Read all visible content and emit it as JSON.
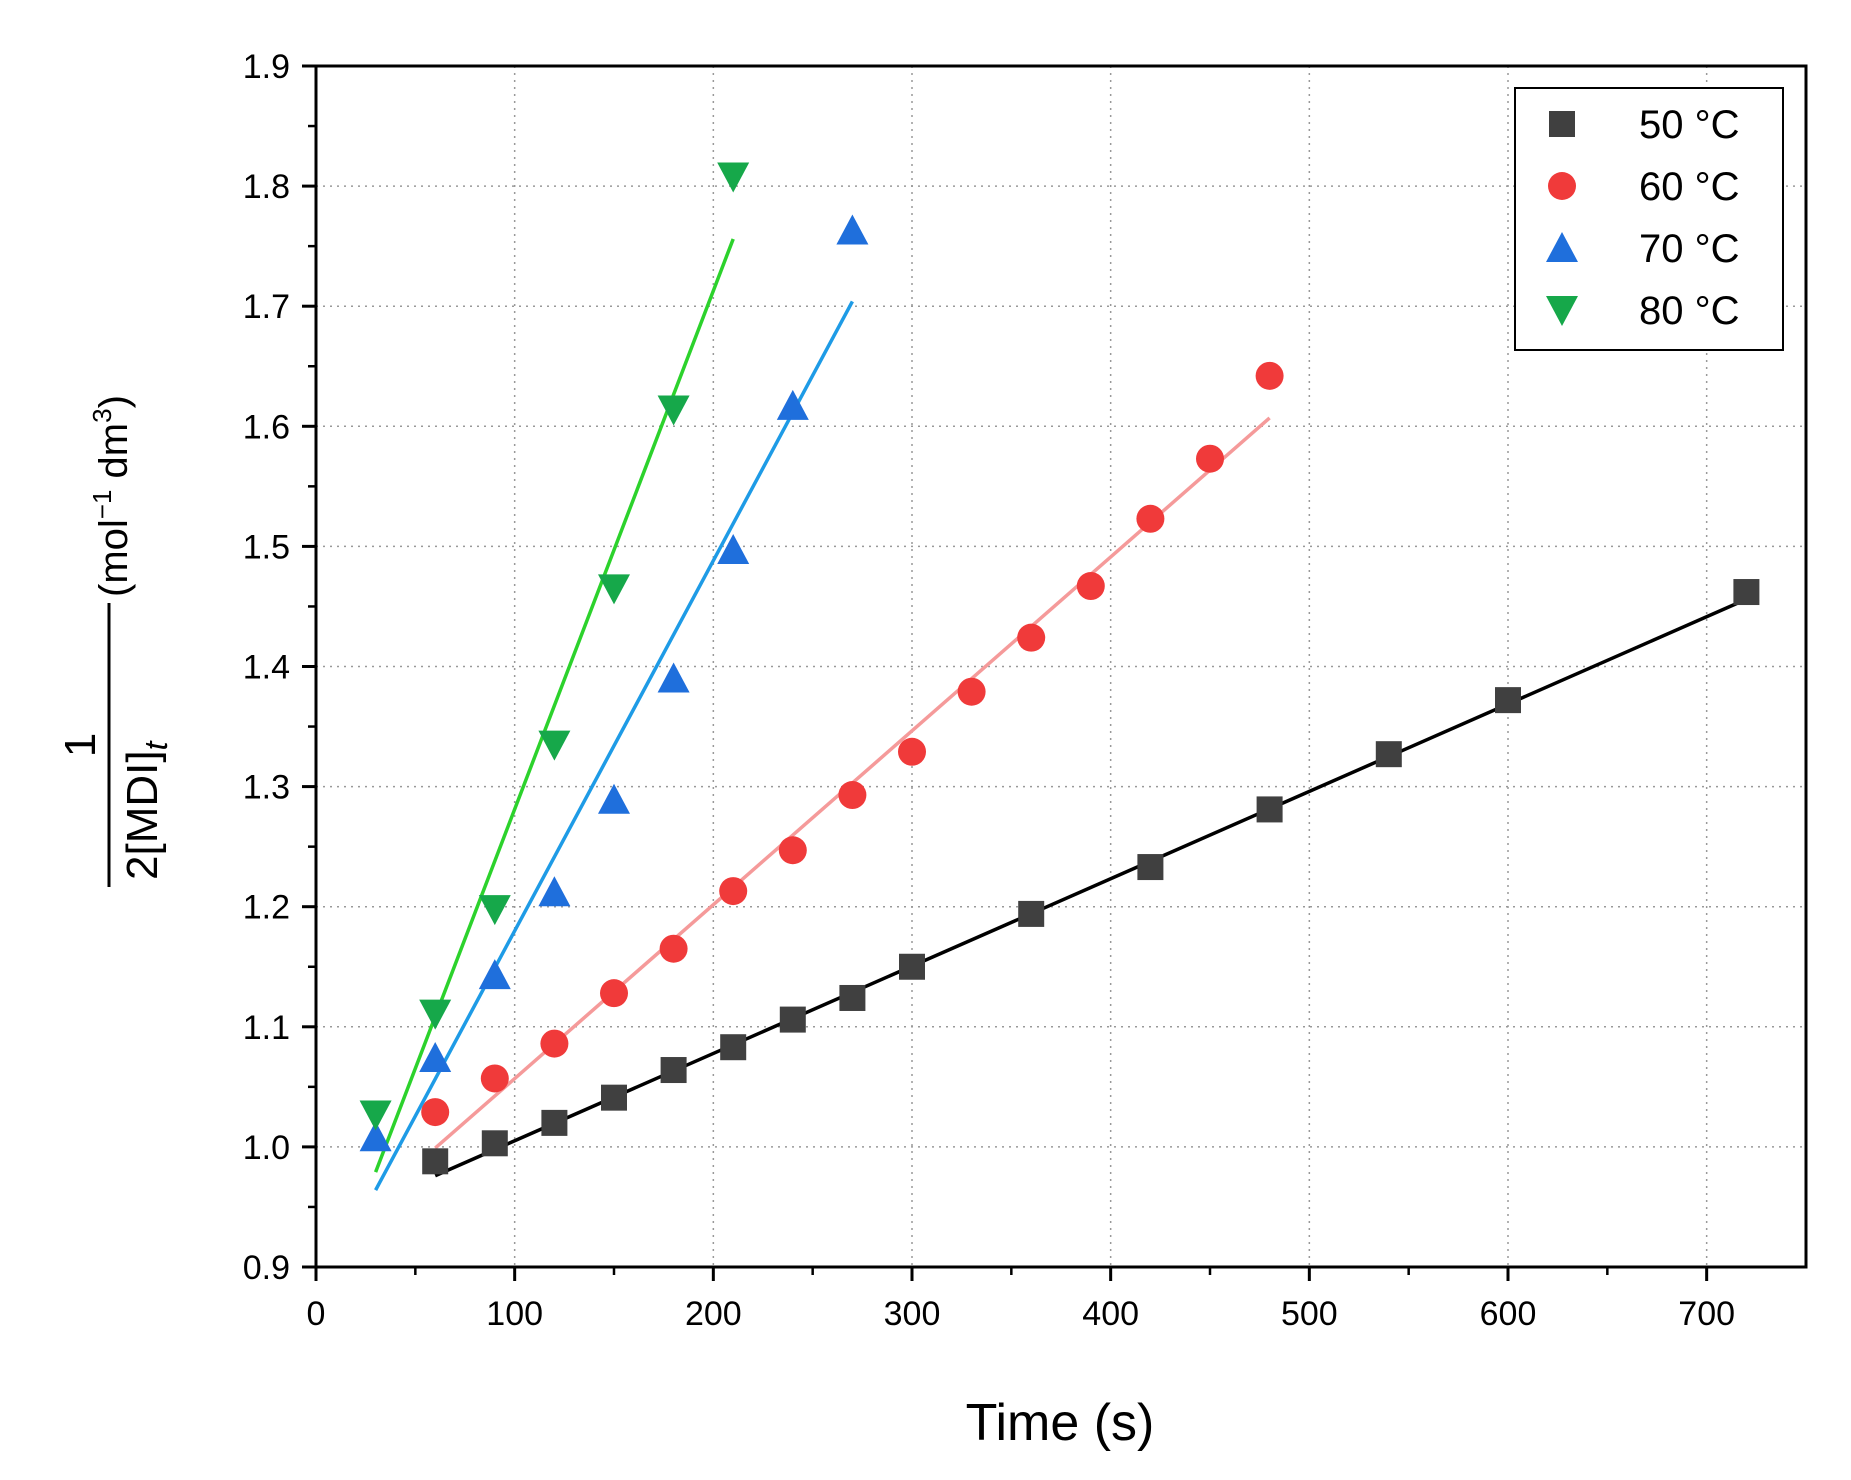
{
  "chart_data": {
    "type": "scatter",
    "title": "",
    "xlabel": "Time (s)",
    "ylabel": {
      "numerator": "1",
      "denominator": "2[MDI]",
      "subscript": "t",
      "unit_prefix": "(mol",
      "unit_exp1": "−1",
      "unit_mid": " dm",
      "unit_exp2": "3",
      "unit_suffix": ")"
    },
    "xlim": [
      0,
      750
    ],
    "ylim": [
      0.9,
      1.9
    ],
    "xticks": [
      0,
      100,
      200,
      300,
      400,
      500,
      600,
      700
    ],
    "xtick_labels": [
      "0",
      "100",
      "200",
      "300",
      "400",
      "500",
      "600",
      "700"
    ],
    "yticks": [
      0.9,
      1.0,
      1.1,
      1.2,
      1.3,
      1.4,
      1.5,
      1.6,
      1.7,
      1.8,
      1.9
    ],
    "ytick_labels": [
      "0.9",
      "1.0",
      "1.1",
      "1.2",
      "1.3",
      "1.4",
      "1.5",
      "1.6",
      "1.7",
      "1.8",
      "1.9"
    ],
    "grid": true,
    "legend_position": "top-right",
    "series": [
      {
        "name": "50 °C",
        "marker": "square",
        "color": "#404040",
        "fit_color": "#000000",
        "x": [
          60,
          90,
          120,
          150,
          180,
          210,
          240,
          270,
          300,
          360,
          420,
          480,
          540,
          600,
          720
        ],
        "y": [
          0.988,
          1.003,
          1.02,
          1.041,
          1.064,
          1.083,
          1.106,
          1.124,
          1.15,
          1.194,
          1.233,
          1.281,
          1.327,
          1.372,
          1.462
        ],
        "fit": [
          [
            60,
            0.976
          ],
          [
            720,
            1.456
          ]
        ]
      },
      {
        "name": "60 °C",
        "marker": "circle",
        "color": "#f03a3a",
        "fit_color": "#f59a9a",
        "x": [
          60,
          90,
          120,
          150,
          180,
          210,
          240,
          270,
          300,
          330,
          360,
          390,
          420,
          450,
          480
        ],
        "y": [
          1.029,
          1.057,
          1.086,
          1.128,
          1.165,
          1.213,
          1.247,
          1.293,
          1.329,
          1.379,
          1.424,
          1.467,
          1.523,
          1.573,
          1.642
        ],
        "fit": [
          [
            60,
            0.999
          ],
          [
            480,
            1.607
          ]
        ]
      },
      {
        "name": "70 °C",
        "marker": "triangle-up",
        "color": "#1f6fdc",
        "fit_color": "#1e9be6",
        "x": [
          30,
          60,
          90,
          120,
          150,
          180,
          210,
          240,
          270
        ],
        "y": [
          1.008,
          1.074,
          1.143,
          1.212,
          1.289,
          1.39,
          1.497,
          1.617,
          1.763
        ],
        "fit": [
          [
            30,
            0.964
          ],
          [
            270,
            1.704
          ]
        ]
      },
      {
        "name": "80 °C",
        "marker": "triangle-down",
        "color": "#16a84a",
        "fit_color": "#2cd22c",
        "x": [
          30,
          60,
          90,
          120,
          150,
          180,
          210
        ],
        "y": [
          1.027,
          1.111,
          1.198,
          1.335,
          1.465,
          1.614,
          1.808
        ],
        "fit": [
          [
            30,
            0.979
          ],
          [
            210,
            1.756
          ]
        ]
      }
    ]
  }
}
